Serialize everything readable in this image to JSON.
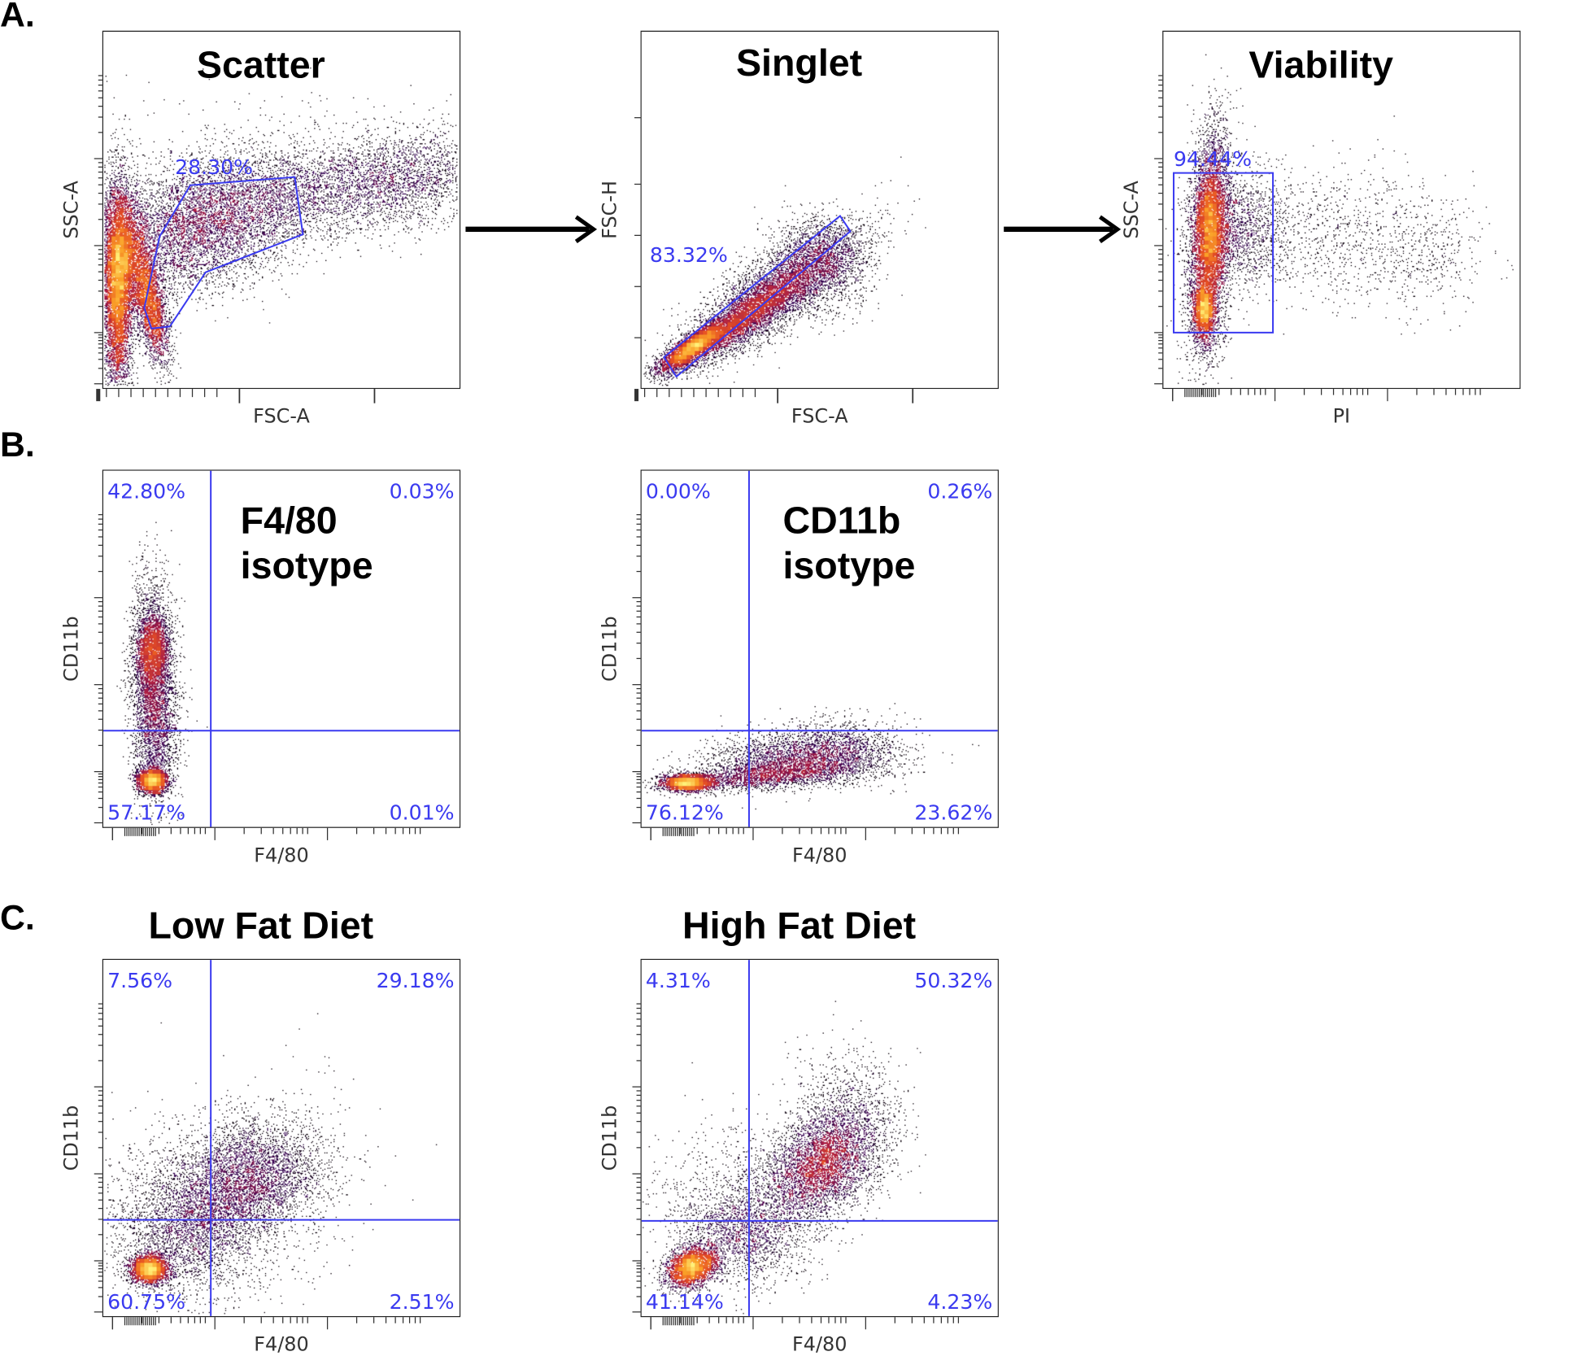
{
  "figure_labels": [
    "A.",
    "B.",
    "C."
  ],
  "colors": {
    "gate": "#3a3af0",
    "density_low": "#000000",
    "density_mid": "#c02040",
    "density_high": "#fde040"
  },
  "chart_data": [
    {
      "type": "scatter",
      "panel": "A",
      "title": "Scatter",
      "xlabel": "FSC-A",
      "ylabel": "SSC-A",
      "gate": {
        "shape": "polygon",
        "label": "28.30%"
      }
    },
    {
      "type": "scatter",
      "panel": "A",
      "title": "Singlet",
      "xlabel": "FSC-A",
      "ylabel": "FSC-H",
      "gate": {
        "shape": "rotated-rectangle",
        "label": "83.32%"
      }
    },
    {
      "type": "scatter",
      "panel": "A",
      "title": "Viability",
      "xlabel": "PI",
      "ylabel": "SSC-A",
      "gate": {
        "shape": "rectangle",
        "label": "94.44%"
      }
    },
    {
      "type": "scatter",
      "panel": "B",
      "title_lines": [
        "F4/80",
        "isotype"
      ],
      "xlabel": "F4/80",
      "ylabel": "CD11b",
      "quadrants": {
        "upper_left": "42.80%",
        "upper_right": "0.03%",
        "lower_left": "57.17%",
        "lower_right": "0.01%"
      }
    },
    {
      "type": "scatter",
      "panel": "B",
      "title_lines": [
        "CD11b",
        "isotype"
      ],
      "xlabel": "F4/80",
      "ylabel": "CD11b",
      "quadrants": {
        "upper_left": "0.00%",
        "upper_right": "0.26%",
        "lower_left": "76.12%",
        "lower_right": "23.62%"
      }
    },
    {
      "type": "scatter",
      "panel": "C",
      "title": "Low Fat Diet",
      "xlabel": "F4/80",
      "ylabel": "CD11b",
      "quadrants": {
        "upper_left": "7.56%",
        "upper_right": "29.18%",
        "lower_left": "60.75%",
        "lower_right": "2.51%"
      }
    },
    {
      "type": "scatter",
      "panel": "C",
      "title": "High Fat Diet",
      "xlabel": "F4/80",
      "ylabel": "CD11b",
      "quadrants": {
        "upper_left": "4.31%",
        "upper_right": "50.32%",
        "lower_left": "41.14%",
        "lower_right": "4.23%"
      }
    }
  ]
}
